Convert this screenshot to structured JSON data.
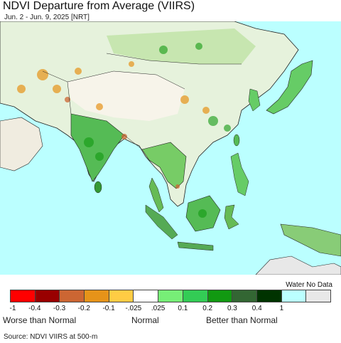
{
  "title": "NDVI Departure from Average (VIIRS)",
  "subtitle": "Jun. 2 - Jun. 9, 2025 [NRT]",
  "legend": {
    "title": "Water No Data",
    "classes": [
      {
        "color": "#ff0000"
      },
      {
        "color": "#990000"
      },
      {
        "color": "#cc6633"
      },
      {
        "color": "#e69319"
      },
      {
        "color": "#ffcc44"
      },
      {
        "color": "#ffffff"
      },
      {
        "color": "#77ee77"
      },
      {
        "color": "#33cc55"
      },
      {
        "color": "#119911"
      },
      {
        "color": "#336633"
      },
      {
        "color": "#003300"
      },
      {
        "color": "#bbffff"
      },
      {
        "color": "#e8e8e8"
      }
    ],
    "ticks": [
      "-1",
      "-0.4",
      "-0.3",
      "-0.2",
      "-0.1",
      "-.025",
      ".025",
      "0.1",
      "0.2",
      "0.3",
      "0.4",
      "1"
    ],
    "captions": {
      "left": "Worse than Normal",
      "center": "Normal",
      "right": "Better than Normal"
    }
  },
  "source": "Source: NDVI VIIRS at 500-m",
  "colors": {
    "ocean": "#bbffff",
    "land": "#f2f2f2",
    "nodata": "#e8e8e8",
    "border": "#222222"
  }
}
